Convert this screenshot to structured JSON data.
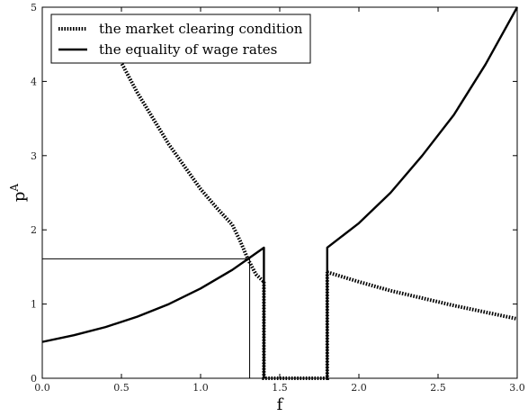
{
  "chart_data": {
    "type": "line",
    "xlabel": "f",
    "ylabel": "p^A",
    "xlim": [
      0,
      3.0
    ],
    "ylim": [
      0,
      5
    ],
    "x_ticks": [
      "0.0",
      "0.5",
      "1.0",
      "1.5",
      "2.0",
      "2.5",
      "3.0"
    ],
    "y_ticks": [
      "0",
      "1",
      "2",
      "3",
      "4",
      "5"
    ],
    "grid": false,
    "legend_position": "top-left",
    "series": [
      {
        "name": "the market clearing condition",
        "style": "dotted",
        "color": "#000000",
        "segments": [
          {
            "x": [
              0.46,
              0.5,
              0.6,
              0.7,
              0.8,
              0.9,
              1.0,
              1.1,
              1.2,
              1.25,
              1.3,
              1.35,
              1.4
            ],
            "y": [
              4.45,
              4.25,
              3.85,
              3.5,
              3.15,
              2.85,
              2.55,
              2.3,
              2.07,
              1.85,
              1.6,
              1.4,
              1.3
            ]
          },
          {
            "x": [
              1.4,
              1.4,
              1.8,
              1.8
            ],
            "y": [
              1.3,
              0.0,
              0.0,
              1.43
            ]
          },
          {
            "x": [
              1.8,
              2.0,
              2.2,
              2.4,
              2.6,
              2.8,
              3.0
            ],
            "y": [
              1.43,
              1.3,
              1.18,
              1.08,
              0.98,
              0.89,
              0.8
            ]
          }
        ]
      },
      {
        "name": "the equality of wage rates",
        "style": "solid",
        "color": "#000000",
        "segments": [
          {
            "x": [
              0.0,
              0.2,
              0.4,
              0.6,
              0.8,
              1.0,
              1.2,
              1.3,
              1.4,
              1.4
            ],
            "y": [
              0.49,
              0.58,
              0.69,
              0.83,
              1.0,
              1.21,
              1.46,
              1.61,
              1.76,
              0.0
            ]
          },
          {
            "x": [
              1.8,
              1.8,
              2.0,
              2.2,
              2.4,
              2.6,
              2.8,
              3.0
            ],
            "y": [
              0.0,
              1.76,
              2.09,
              2.5,
              3.0,
              3.55,
              4.23,
              5.0
            ]
          }
        ]
      }
    ],
    "reference_lines": [
      {
        "x": [
          0.0,
          1.31,
          1.31
        ],
        "y": [
          1.61,
          1.61,
          0.0
        ]
      }
    ]
  }
}
